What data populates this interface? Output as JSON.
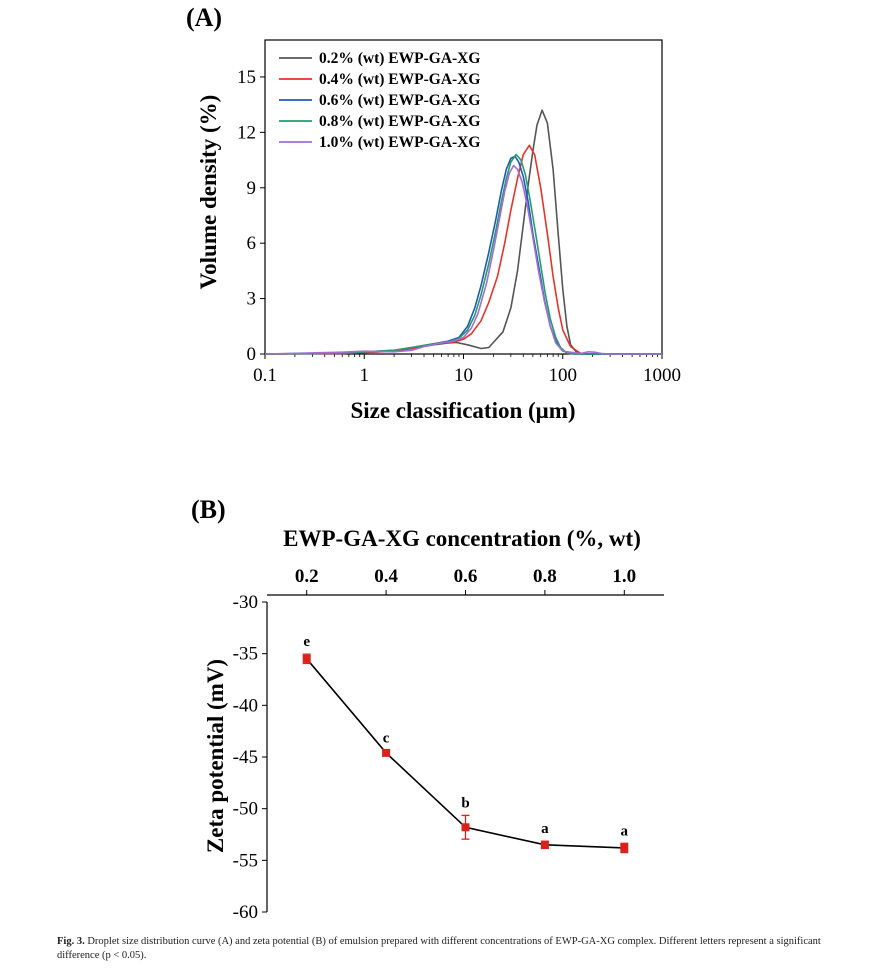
{
  "chart_data": [
    {
      "panel": "(A)",
      "type": "line",
      "xscale": "log",
      "xlabel": "Size classification (μm)",
      "ylabel": "Volume density (%)",
      "xlim": [
        0.1,
        1000
      ],
      "ylim": [
        0,
        17
      ],
      "xticks": [
        0.1,
        1,
        10,
        100,
        1000
      ],
      "xtick_labels": [
        "0.1",
        "1",
        "10",
        "100",
        "1000"
      ],
      "yticks": [
        0,
        3,
        6,
        9,
        12,
        15
      ],
      "ytick_labels": [
        "0",
        "3",
        "6",
        "9",
        "12",
        "15"
      ],
      "legend_position": "top-left",
      "series": [
        {
          "name": "0.2% (wt) EWP-GA-XG",
          "color": "#555555",
          "points": [
            [
              0.1,
              0
            ],
            [
              0.6,
              0.03
            ],
            [
              1,
              0.08
            ],
            [
              2,
              0.15
            ],
            [
              3,
              0.3
            ],
            [
              5,
              0.5
            ],
            [
              7,
              0.6
            ],
            [
              8.5,
              0.62
            ],
            [
              11,
              0.5
            ],
            [
              15,
              0.3
            ],
            [
              18,
              0.35
            ],
            [
              25,
              1.2
            ],
            [
              30,
              2.5
            ],
            [
              35,
              4.5
            ],
            [
              40,
              7
            ],
            [
              45,
              9.2
            ],
            [
              50,
              11
            ],
            [
              55,
              12.4
            ],
            [
              62,
              13.2
            ],
            [
              70,
              12.5
            ],
            [
              80,
              10
            ],
            [
              90,
              6.5
            ],
            [
              100,
              3.5
            ],
            [
              110,
              1.5
            ],
            [
              120,
              0.5
            ],
            [
              140,
              0.05
            ],
            [
              160,
              0
            ],
            [
              1000,
              0
            ]
          ]
        },
        {
          "name": "0.4% (wt) EWP-GA-XG",
          "color": "#e8332a",
          "points": [
            [
              0.1,
              0
            ],
            [
              0.6,
              0.03
            ],
            [
              1,
              0.08
            ],
            [
              2,
              0.15
            ],
            [
              3,
              0.3
            ],
            [
              5,
              0.55
            ],
            [
              8,
              0.65
            ],
            [
              10,
              0.8
            ],
            [
              12,
              1.1
            ],
            [
              15,
              1.8
            ],
            [
              18,
              2.8
            ],
            [
              22,
              4.2
            ],
            [
              26,
              6
            ],
            [
              30,
              7.8
            ],
            [
              35,
              9.5
            ],
            [
              40,
              10.8
            ],
            [
              46,
              11.3
            ],
            [
              52,
              10.8
            ],
            [
              60,
              9
            ],
            [
              70,
              6.5
            ],
            [
              80,
              4.2
            ],
            [
              90,
              2.5
            ],
            [
              100,
              1.3
            ],
            [
              120,
              0.4
            ],
            [
              150,
              0.05
            ],
            [
              170,
              0
            ],
            [
              1000,
              0
            ]
          ]
        },
        {
          "name": "0.6% (wt) EWP-GA-XG",
          "color": "#1f5bb5",
          "points": [
            [
              0.1,
              0
            ],
            [
              0.6,
              0.05
            ],
            [
              1,
              0.12
            ],
            [
              2,
              0.2
            ],
            [
              3,
              0.35
            ],
            [
              5,
              0.55
            ],
            [
              7,
              0.7
            ],
            [
              9,
              0.9
            ],
            [
              11,
              1.5
            ],
            [
              13,
              2.5
            ],
            [
              15,
              3.7
            ],
            [
              18,
              5.5
            ],
            [
              21,
              7.2
            ],
            [
              24,
              8.8
            ],
            [
              27,
              10
            ],
            [
              30,
              10.6
            ],
            [
              33,
              10.7
            ],
            [
              36,
              10.4
            ],
            [
              40,
              9.6
            ],
            [
              45,
              8.2
            ],
            [
              50,
              6.5
            ],
            [
              57,
              4.8
            ],
            [
              65,
              3
            ],
            [
              75,
              1.5
            ],
            [
              85,
              0.7
            ],
            [
              95,
              0.3
            ],
            [
              110,
              0.05
            ],
            [
              130,
              0
            ],
            [
              1000,
              0
            ]
          ]
        },
        {
          "name": "0.8% (wt) EWP-GA-XG",
          "color": "#2a9a6a",
          "points": [
            [
              0.1,
              0
            ],
            [
              0.6,
              0.05
            ],
            [
              1,
              0.12
            ],
            [
              2,
              0.2
            ],
            [
              3,
              0.35
            ],
            [
              5,
              0.55
            ],
            [
              7,
              0.65
            ],
            [
              9,
              0.85
            ],
            [
              11,
              1.3
            ],
            [
              13,
              2.1
            ],
            [
              15,
              3.2
            ],
            [
              18,
              4.9
            ],
            [
              21,
              6.6
            ],
            [
              24,
              8.2
            ],
            [
              27,
              9.5
            ],
            [
              30,
              10.4
            ],
            [
              34,
              10.8
            ],
            [
              38,
              10.5
            ],
            [
              42,
              9.7
            ],
            [
              47,
              8.3
            ],
            [
              53,
              6.6
            ],
            [
              60,
              4.8
            ],
            [
              67,
              3.2
            ],
            [
              75,
              1.9
            ],
            [
              85,
              0.9
            ],
            [
              95,
              0.35
            ],
            [
              110,
              0.05
            ],
            [
              130,
              0
            ],
            [
              1000,
              0
            ]
          ]
        },
        {
          "name": "1.0% (wt) EWP-GA-XG",
          "color": "#a06fd8",
          "points": [
            [
              0.1,
              0
            ],
            [
              0.6,
              0.1
            ],
            [
              1,
              0.15
            ],
            [
              2,
              0.12
            ],
            [
              3,
              0.2
            ],
            [
              4,
              0.4
            ],
            [
              6,
              0.6
            ],
            [
              8,
              0.7
            ],
            [
              10,
              0.9
            ],
            [
              12,
              1.4
            ],
            [
              14,
              2.2
            ],
            [
              17,
              3.8
            ],
            [
              20,
              5.6
            ],
            [
              23,
              7.3
            ],
            [
              26,
              8.8
            ],
            [
              29,
              9.8
            ],
            [
              32,
              10.2
            ],
            [
              35,
              10
            ],
            [
              39,
              9.3
            ],
            [
              44,
              8
            ],
            [
              50,
              6.3
            ],
            [
              57,
              4.5
            ],
            [
              65,
              2.9
            ],
            [
              75,
              1.5
            ],
            [
              85,
              0.6
            ],
            [
              100,
              0.15
            ],
            [
              150,
              0.02
            ],
            [
              180,
              0.12
            ],
            [
              210,
              0.1
            ],
            [
              250,
              0.02
            ],
            [
              300,
              0
            ],
            [
              1000,
              0
            ]
          ]
        }
      ]
    },
    {
      "panel": "(B)",
      "type": "line",
      "xlabel": "EWP-GA-XG concentration (%, wt)",
      "xlabel_position": "top",
      "ylabel": "Zeta potential (mV)",
      "xlim": [
        0.1,
        1.1
      ],
      "ylim": [
        -60,
        -30
      ],
      "xticks": [
        0.2,
        0.4,
        0.6,
        0.8,
        1.0
      ],
      "xtick_labels": [
        "0.2",
        "0.4",
        "0.6",
        "0.8",
        "1.0"
      ],
      "yticks": [
        -30,
        -35,
        -40,
        -45,
        -50,
        -55,
        -60
      ],
      "ytick_labels": [
        "-30",
        "-35",
        "-40",
        "-45",
        "-50",
        "-55",
        "-60"
      ],
      "line_color": "#000000",
      "marker_color": "#d9221c",
      "x": [
        0.2,
        0.4,
        0.6,
        0.8,
        1.0
      ],
      "y": [
        -35.5,
        -44.6,
        -51.8,
        -53.5,
        -53.8
      ],
      "error": [
        0.45,
        0.25,
        1.15,
        0.35,
        0.45
      ],
      "annotations": [
        "e",
        "c",
        "b",
        "a",
        "a"
      ]
    }
  ],
  "panel_labels": {
    "a": "(A)",
    "b": "(B)"
  },
  "caption": {
    "label": "Fig. 3.",
    "text": "Droplet size distribution curve (A) and zeta potential (B) of emulsion prepared with different concentrations of EWP-GA-XG complex. Different letters represent a significant difference (p < 0.05)."
  }
}
